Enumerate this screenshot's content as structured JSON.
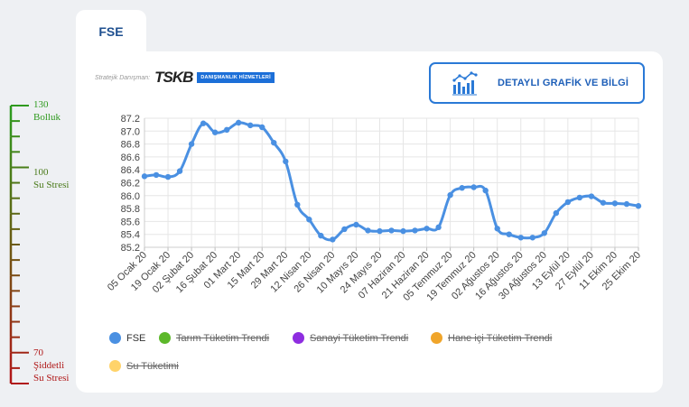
{
  "tab": {
    "label": "FSE"
  },
  "advisor": {
    "label": "Stratejik Danışman:",
    "logo": "TSKB",
    "badge": "DANIŞMANLIK HİZMETLERİ"
  },
  "detail_button": {
    "label": "DETAYLI GRAFİK VE BİLGİ"
  },
  "scale": {
    "top_value": "130",
    "top_text": "Bolluk",
    "mid_value": "100",
    "mid_text": "Su Stresi",
    "bottom_value": "70",
    "bottom_text_1": "Şiddetli",
    "bottom_text_2": "Su Stresi",
    "colors": {
      "top": "#2e9a1e",
      "mid": "#4a7a1a",
      "bottom": "#b01818"
    }
  },
  "legend": [
    {
      "label": "FSE",
      "color": "#4a90e2",
      "hidden": false
    },
    {
      "label": "Tarım Tüketim Trendi",
      "color": "#5cb82a",
      "hidden": true
    },
    {
      "label": "Sanayi Tüketim Trendi",
      "color": "#8e2de0",
      "hidden": true
    },
    {
      "label": "Hane içi Tüketim Trendi",
      "color": "#f0a52a",
      "hidden": true
    },
    {
      "label": "Su Tüketimi",
      "color": "#ffd36a",
      "hidden": true
    }
  ],
  "chart_data": {
    "type": "line",
    "title": "",
    "xlabel": "",
    "ylabel": "",
    "ylim": [
      85.2,
      87.2
    ],
    "yticks": [
      "85.2",
      "85.4",
      "85.6",
      "85.8",
      "86.0",
      "86.2",
      "86.4",
      "86.6",
      "86.8",
      "87.0",
      "87.2"
    ],
    "x_tick_labels": [
      "05 Ocak 20",
      "19 Ocak 20",
      "02 Şubat 20",
      "16 Şubat 20",
      "01 Mart 20",
      "15 Mart 20",
      "29 Mart 20",
      "12 Nisan 20",
      "26 Nisan 20",
      "10 Mayıs 20",
      "24 Mayıs 20",
      "07 Haziran 20",
      "21 Haziran 20",
      "05 Temmuz 20",
      "19 Temmuz 20",
      "02 Ağustos 20",
      "16 Ağustos 20",
      "30 Ağustos 20",
      "13 Eylül 20",
      "27 Eylül 20",
      "11 Ekim 20",
      "25 Ekim 20"
    ],
    "series": [
      {
        "name": "FSE",
        "color": "#4a90e2",
        "values": [
          86.3,
          86.32,
          86.29,
          86.38,
          86.8,
          87.12,
          86.98,
          87.02,
          87.13,
          87.09,
          87.06,
          86.82,
          86.53,
          85.86,
          85.63,
          85.38,
          85.32,
          85.48,
          85.55,
          85.46,
          85.45,
          85.46,
          85.45,
          85.46,
          85.49,
          85.51,
          86.01,
          86.12,
          86.13,
          86.08,
          85.49,
          85.4,
          85.35,
          85.35,
          85.42,
          85.73,
          85.9,
          85.97,
          85.99,
          85.89,
          85.88,
          85.87,
          85.84
        ]
      }
    ]
  }
}
